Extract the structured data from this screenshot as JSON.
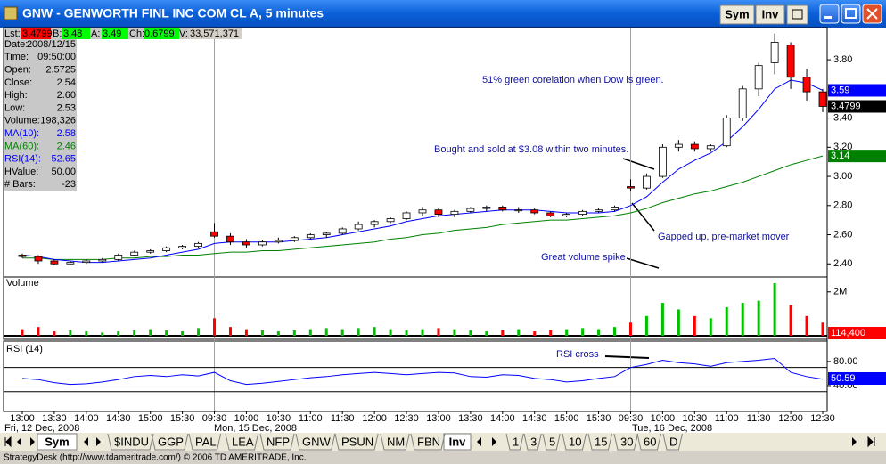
{
  "window": {
    "title": "GNW - GENWORTH FINL INC COM CL A, 5 minutes",
    "buttons": [
      "Sym",
      "Inv"
    ]
  },
  "quote": [
    {
      "label": "Lst:",
      "value": "3.4799",
      "color": "#ff0000"
    },
    {
      "label": "B:",
      "value": "3.48",
      "color": "#00ff00"
    },
    {
      "label": "A:",
      "value": "3.49",
      "color": "#00ff00"
    },
    {
      "label": "Ch:",
      "value": "0.6799",
      "color": "#00ff00"
    },
    {
      "label": "V:",
      "value": "33,571,371",
      "color": "#d4d0c8"
    }
  ],
  "data_window": [
    {
      "label": "Date:",
      "value": "2008/12/15"
    },
    {
      "label": "Time:",
      "value": "09:50:00"
    },
    {
      "label": "Open:",
      "value": "2.5725"
    },
    {
      "label": "Close:",
      "value": "2.54"
    },
    {
      "label": "High:",
      "value": "2.60"
    },
    {
      "label": "Low:",
      "value": "2.53"
    },
    {
      "label": "Volume:",
      "value": "198,326"
    },
    {
      "label": "MA(10):",
      "value": "2.58",
      "color": "#0000ff"
    },
    {
      "label": "MA(60):",
      "value": "2.46",
      "color": "#008000"
    },
    {
      "label": "RSI(14):",
      "value": "52.65",
      "color": "#0000ff"
    },
    {
      "label": "HValue:",
      "value": "50.00"
    },
    {
      "label": "# Bars:",
      "value": "-23"
    }
  ],
  "price": {
    "candles": [
      [
        2.46,
        2.47,
        2.44,
        2.45
      ],
      [
        2.45,
        2.46,
        2.4,
        2.42
      ],
      [
        2.42,
        2.43,
        2.39,
        2.4
      ],
      [
        2.4,
        2.42,
        2.39,
        2.41
      ],
      [
        2.41,
        2.43,
        2.4,
        2.42
      ],
      [
        2.42,
        2.44,
        2.41,
        2.43
      ],
      [
        2.43,
        2.47,
        2.42,
        2.46
      ],
      [
        2.46,
        2.49,
        2.45,
        2.48
      ],
      [
        2.48,
        2.5,
        2.47,
        2.49
      ],
      [
        2.49,
        2.52,
        2.48,
        2.51
      ],
      [
        2.51,
        2.53,
        2.5,
        2.52
      ],
      [
        2.52,
        2.55,
        2.51,
        2.54
      ],
      [
        2.62,
        2.68,
        2.58,
        2.59
      ],
      [
        2.59,
        2.61,
        2.53,
        2.55
      ],
      [
        2.55,
        2.57,
        2.51,
        2.53
      ],
      [
        2.53,
        2.56,
        2.52,
        2.55
      ],
      [
        2.55,
        2.58,
        2.54,
        2.56
      ],
      [
        2.56,
        2.59,
        2.55,
        2.58
      ],
      [
        2.58,
        2.61,
        2.57,
        2.6
      ],
      [
        2.6,
        2.62,
        2.58,
        2.61
      ],
      [
        2.61,
        2.65,
        2.6,
        2.64
      ],
      [
        2.64,
        2.69,
        2.63,
        2.67
      ],
      [
        2.67,
        2.7,
        2.65,
        2.69
      ],
      [
        2.69,
        2.72,
        2.68,
        2.71
      ],
      [
        2.71,
        2.76,
        2.7,
        2.75
      ],
      [
        2.75,
        2.79,
        2.73,
        2.77
      ],
      [
        2.77,
        2.78,
        2.72,
        2.74
      ],
      [
        2.74,
        2.77,
        2.72,
        2.76
      ],
      [
        2.76,
        2.79,
        2.75,
        2.78
      ],
      [
        2.78,
        2.8,
        2.76,
        2.79
      ],
      [
        2.79,
        2.8,
        2.76,
        2.77
      ],
      [
        2.77,
        2.79,
        2.75,
        2.77
      ],
      [
        2.77,
        2.78,
        2.74,
        2.75
      ],
      [
        2.75,
        2.76,
        2.72,
        2.73
      ],
      [
        2.73,
        2.75,
        2.72,
        2.74
      ],
      [
        2.74,
        2.77,
        2.73,
        2.76
      ],
      [
        2.76,
        2.78,
        2.75,
        2.77
      ],
      [
        2.77,
        2.8,
        2.76,
        2.79
      ],
      [
        2.93,
        2.98,
        2.9,
        2.92
      ],
      [
        2.92,
        3.02,
        2.91,
        3.0
      ],
      [
        3.0,
        3.22,
        2.99,
        3.2
      ],
      [
        3.2,
        3.25,
        3.17,
        3.22
      ],
      [
        3.22,
        3.24,
        3.17,
        3.19
      ],
      [
        3.19,
        3.22,
        3.17,
        3.21
      ],
      [
        3.21,
        3.42,
        3.2,
        3.4
      ],
      [
        3.4,
        3.62,
        3.38,
        3.6
      ],
      [
        3.6,
        3.78,
        3.55,
        3.76
      ],
      [
        3.78,
        3.98,
        3.7,
        3.92
      ],
      [
        3.9,
        3.92,
        3.6,
        3.68
      ],
      [
        3.68,
        3.74,
        3.52,
        3.58
      ],
      [
        3.58,
        3.6,
        3.44,
        3.48
      ]
    ],
    "up_color": "#ffffff",
    "down_color": "#ff0000",
    "ma10": {
      "color": "#0000ff",
      "values": [
        2.46,
        2.45,
        2.43,
        2.42,
        2.41,
        2.41,
        2.42,
        2.43,
        2.44,
        2.46,
        2.48,
        2.5,
        2.54,
        2.55,
        2.55,
        2.55,
        2.55,
        2.56,
        2.57,
        2.58,
        2.6,
        2.62,
        2.64,
        2.66,
        2.69,
        2.71,
        2.73,
        2.74,
        2.75,
        2.76,
        2.77,
        2.77,
        2.77,
        2.76,
        2.75,
        2.75,
        2.75,
        2.76,
        2.8,
        2.86,
        2.96,
        3.05,
        3.11,
        3.16,
        3.24,
        3.34,
        3.46,
        3.6,
        3.66,
        3.64,
        3.59
      ]
    },
    "ma60": {
      "color": "#008000",
      "values": [
        2.44,
        2.44,
        2.43,
        2.43,
        2.43,
        2.43,
        2.44,
        2.44,
        2.45,
        2.45,
        2.46,
        2.46,
        2.47,
        2.48,
        2.48,
        2.49,
        2.49,
        2.5,
        2.51,
        2.52,
        2.53,
        2.54,
        2.55,
        2.57,
        2.58,
        2.6,
        2.61,
        2.63,
        2.64,
        2.65,
        2.67,
        2.68,
        2.69,
        2.7,
        2.7,
        2.71,
        2.72,
        2.73,
        2.75,
        2.78,
        2.82,
        2.85,
        2.88,
        2.9,
        2.93,
        2.96,
        3.0,
        3.04,
        3.08,
        3.11,
        3.14
      ]
    },
    "ylim": [
      2.31,
      3.99
    ],
    "yticks": [
      {
        "value": 2.4,
        "label": "2.40"
      },
      {
        "value": 2.6,
        "label": "2.60"
      },
      {
        "value": 2.8,
        "label": "2.80"
      },
      {
        "value": 3.0,
        "label": "3.00"
      },
      {
        "value": 3.2,
        "label": "3.20"
      },
      {
        "value": 3.4,
        "label": "3.40"
      },
      {
        "value": 3.8,
        "label": "3.80"
      }
    ],
    "badges": [
      {
        "value": 3.59,
        "label": "3.59",
        "color": "#0000ff"
      },
      {
        "value": 3.4799,
        "label": "3.4799",
        "color": "#000000"
      },
      {
        "value": 3.14,
        "label": "3.14",
        "color": "#008000"
      }
    ]
  },
  "volume": {
    "title": "Volume",
    "values": [
      300000,
      400000,
      200000,
      250000,
      200000,
      150000,
      200000,
      250000,
      300000,
      250000,
      200000,
      350000,
      800000,
      400000,
      300000,
      250000,
      200000,
      250000,
      300000,
      350000,
      300000,
      350000,
      400000,
      300000,
      250000,
      300000,
      350000,
      300000,
      250000,
      200000,
      250000,
      300000,
      200000,
      250000,
      300000,
      350000,
      300000,
      400000,
      600000,
      900000,
      1500000,
      1200000,
      900000,
      800000,
      1300000,
      1500000,
      1600000,
      2400000,
      1400000,
      900000,
      600000
    ],
    "up_color": "#00c000",
    "down_color": "#ff0000",
    "ylim": [
      0,
      2600000
    ],
    "yticks": [
      {
        "value": 2000000,
        "label": "2M"
      }
    ],
    "badge": {
      "value": 114400,
      "label": "114,400",
      "color": "#ff0000"
    }
  },
  "rsi": {
    "title": "RSI (14)",
    "color": "#0000ff",
    "values": [
      52,
      50,
      45,
      42,
      43,
      46,
      50,
      55,
      57,
      55,
      58,
      56,
      62,
      48,
      42,
      44,
      47,
      50,
      53,
      55,
      58,
      60,
      62,
      60,
      58,
      60,
      62,
      61,
      55,
      54,
      58,
      57,
      52,
      50,
      46,
      48,
      52,
      55,
      70,
      75,
      82,
      78,
      76,
      72,
      78,
      80,
      82,
      85,
      62,
      55,
      50.59
    ],
    "levels": [
      70,
      30
    ],
    "ylim": [
      0,
      105
    ],
    "yticks": [
      {
        "value": 80,
        "label": "80.00"
      },
      {
        "value": 40,
        "label": "40.00"
      }
    ],
    "badge": {
      "value": 50.59,
      "label": "50.59",
      "color": "#0000ff"
    }
  },
  "time_axis": {
    "labels": [
      "13:00",
      "13:30",
      "14:00",
      "14:30",
      "15:00",
      "15:30",
      "09:30",
      "10:00",
      "10:30",
      "11:00",
      "11:30",
      "12:00",
      "12:30",
      "13:00",
      "13:30",
      "14:00",
      "14:30",
      "15:00",
      "15:30",
      "09:30",
      "10:00",
      "10:30",
      "11:00",
      "11:30",
      "12:00",
      "12:30"
    ],
    "dates": [
      "Fri, 12 Dec, 2008",
      "Mon, 15 Dec, 2008",
      "Tue, 16 Dec, 2008"
    ]
  },
  "annotations": [
    "51% green corelation when Dow is green.",
    "Bought and sold at $3.08 within two minutes.",
    "Gapped up, pre-market mover",
    "Great volume spike",
    "RSI cross"
  ],
  "tabs": {
    "sym": "Sym",
    "symbols": [
      "$INDU",
      "GGP",
      "PAL",
      "LEA",
      "NFP",
      "GNW",
      "PSUN",
      "NM",
      "FBN"
    ],
    "inv": "Inv",
    "intervals": [
      "1",
      "3",
      "5",
      "10",
      "15",
      "30",
      "60",
      "D"
    ]
  },
  "footer": "StrategyDesk (http://www.tdameritrade.com/) © 2006 TD AMERITRADE, Inc."
}
